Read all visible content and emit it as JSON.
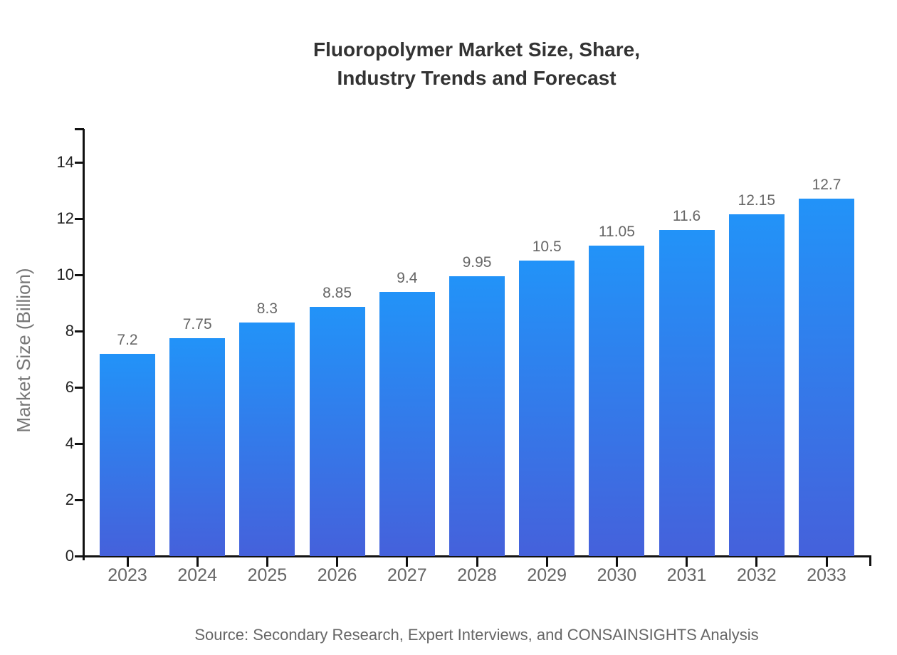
{
  "chart_data": {
    "type": "bar",
    "title": "Fluoropolymer Market Size, Share, Industry Trends and Forecast",
    "title_lines": [
      "Fluoropolymer Market Size, Share,",
      "Industry Trends and Forecast"
    ],
    "xlabel": "",
    "ylabel": "Market Size (Billion)",
    "categories": [
      "2023",
      "2024",
      "2025",
      "2026",
      "2027",
      "2028",
      "2029",
      "2030",
      "2031",
      "2032",
      "2033"
    ],
    "values": [
      7.2,
      7.75,
      8.3,
      8.85,
      9.4,
      9.95,
      10.5,
      11.05,
      11.6,
      12.15,
      12.7
    ],
    "value_labels": [
      "7.2",
      "7.75",
      "8.3",
      "8.85",
      "9.4",
      "9.95",
      "10.5",
      "11.05",
      "11.6",
      "12.15",
      "12.7"
    ],
    "yticks": [
      0,
      2,
      4,
      6,
      8,
      10,
      12,
      14
    ],
    "ylim": [
      0,
      15.2
    ],
    "grid": false,
    "legend": null,
    "colors": {
      "bar_gradient_top": "#2293f8",
      "bar_gradient_bottom": "#4561db",
      "axis": "#111111",
      "ytick_label": "#222222",
      "xtick_label": "#666666",
      "value_label": "#666666",
      "ylabel": "#777777",
      "title": "#333333",
      "background": "#ffffff"
    }
  },
  "footer": {
    "source": "Source: Secondary Research, Expert Interviews, and CONSAINSIGHTS Analysis"
  }
}
